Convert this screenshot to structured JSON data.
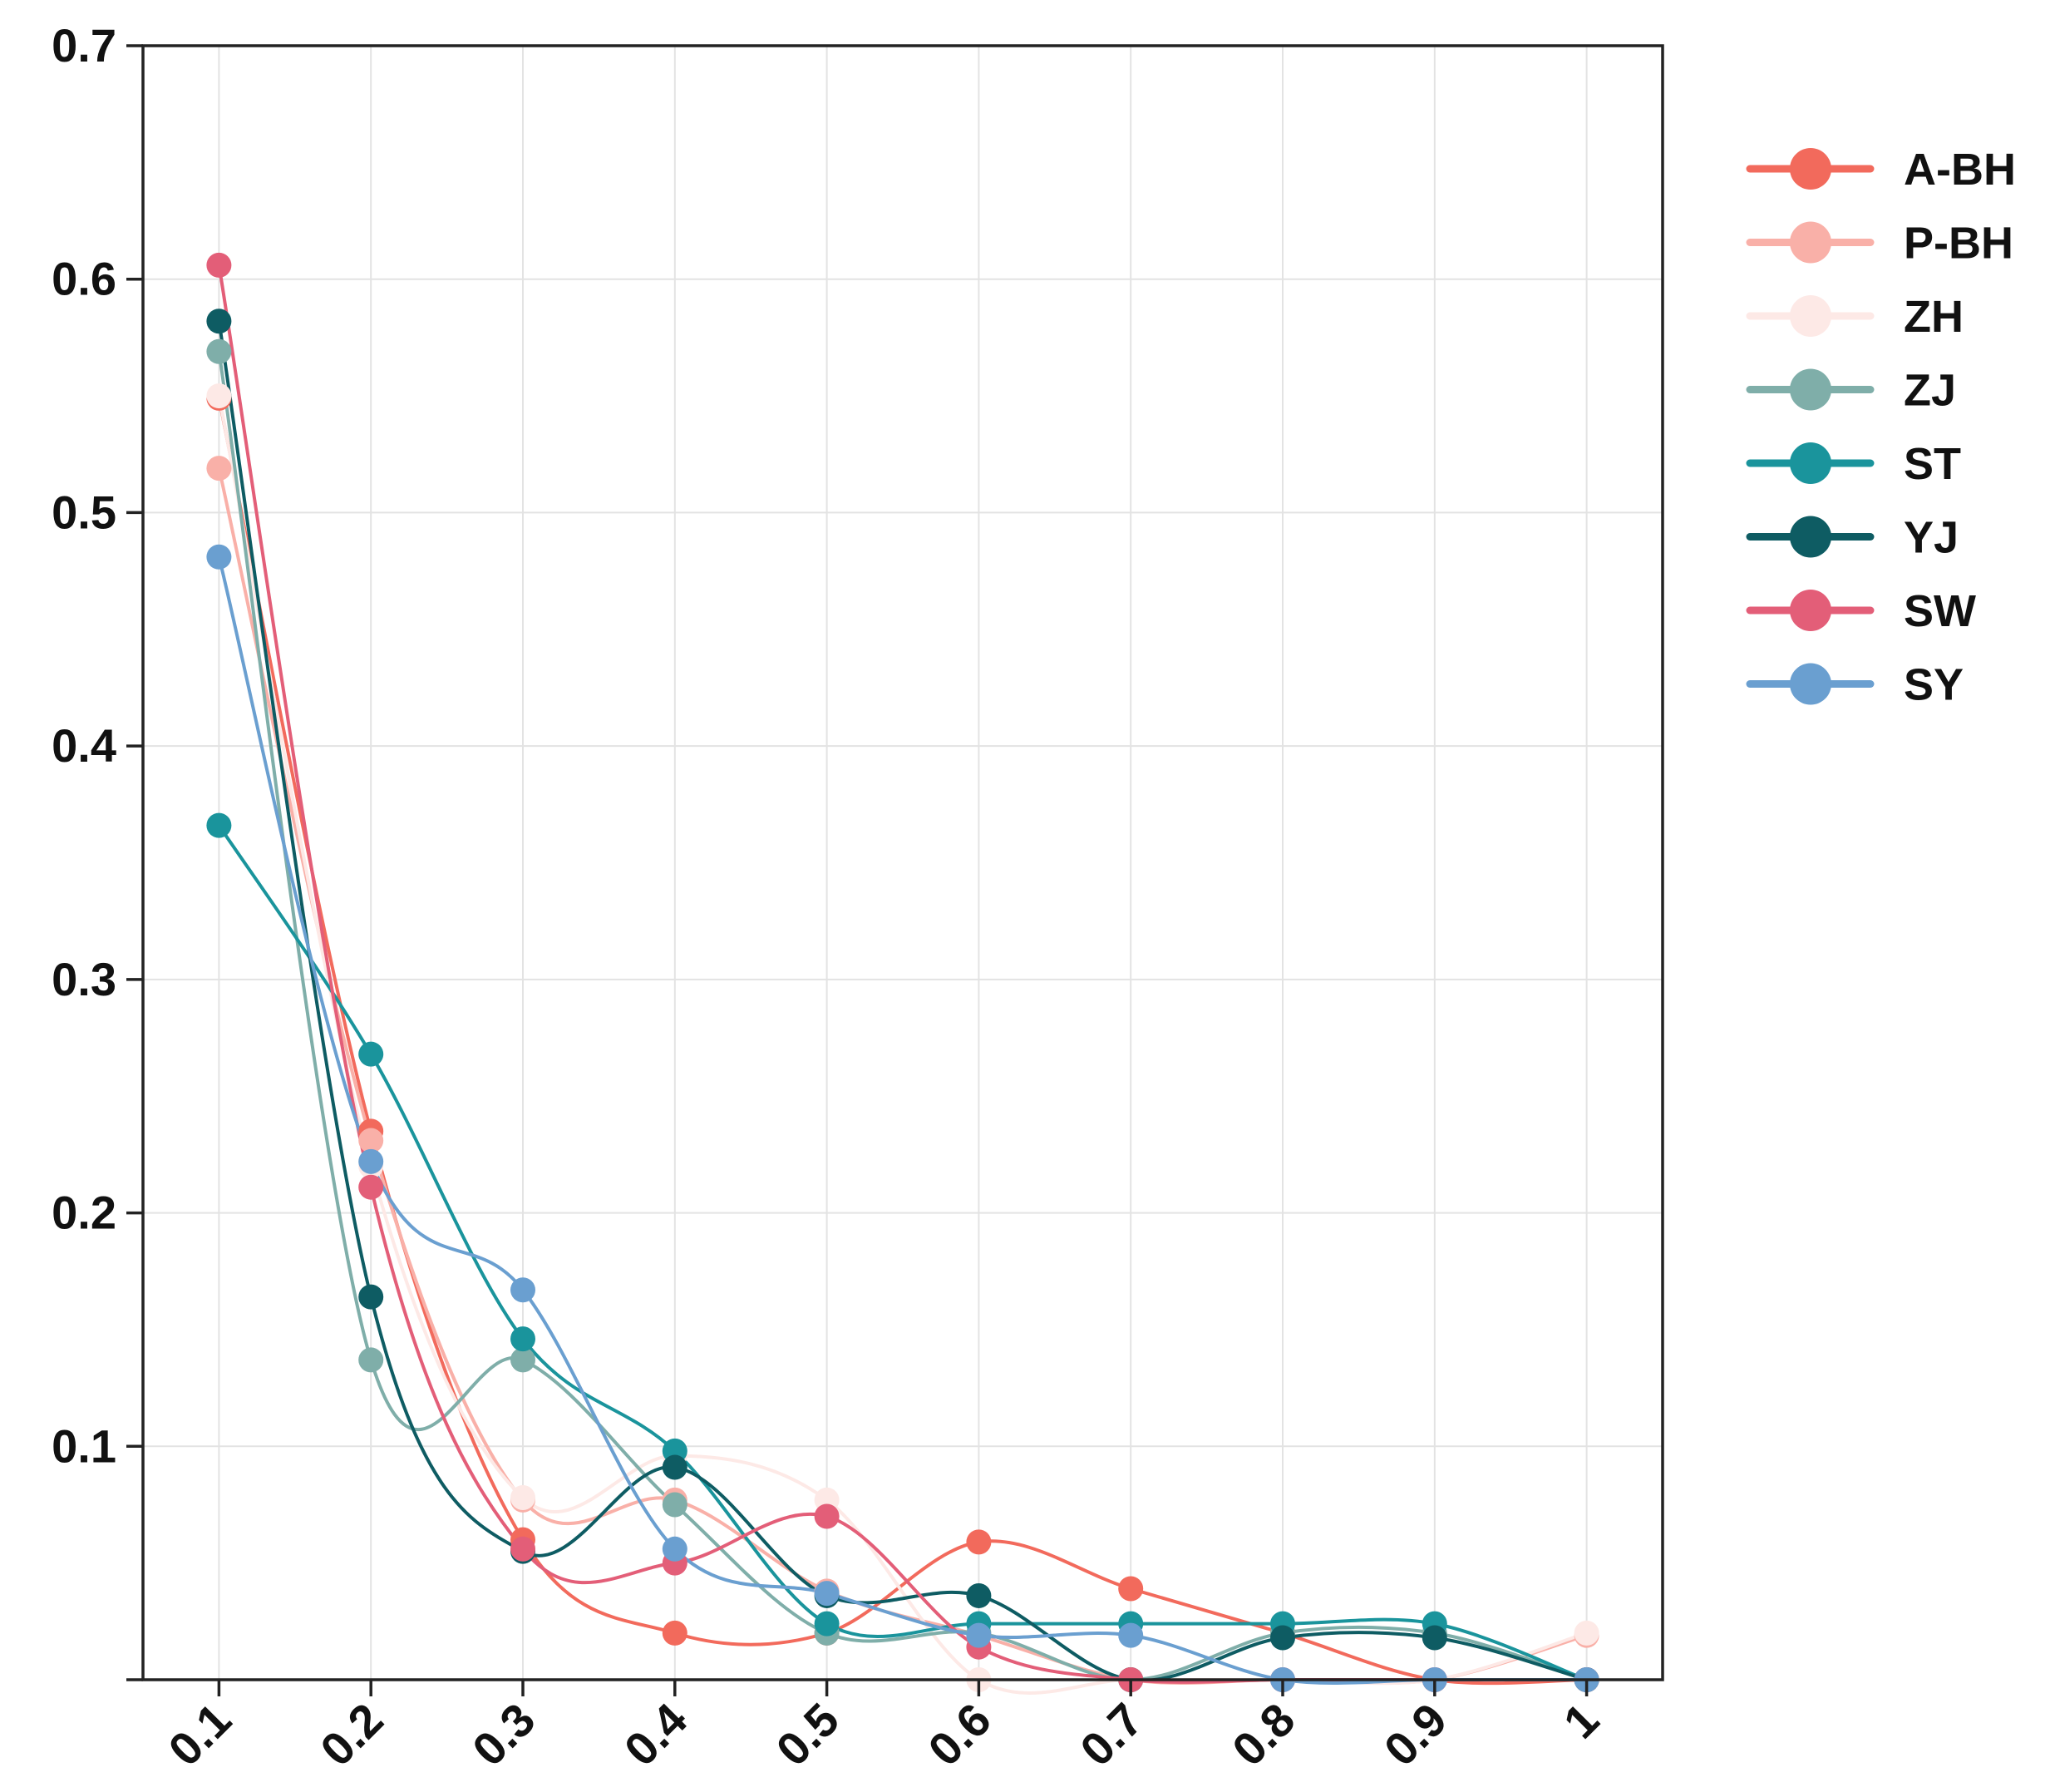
{
  "chart_data": {
    "type": "line",
    "title": "",
    "xlabel": "",
    "ylabel": "",
    "x": [
      0.1,
      0.2,
      0.3,
      0.4,
      0.5,
      0.6,
      0.7,
      0.8,
      0.9,
      1
    ],
    "x_tick_labels": [
      "0.1",
      "0.2",
      "0.3",
      "0.4",
      "0.5",
      "0.6",
      "0.7",
      "0.8",
      "0.9",
      "1"
    ],
    "y_ticks": [
      0.1,
      0.2,
      0.3,
      0.4,
      0.5,
      0.6,
      0.7
    ],
    "y_tick_labels": [
      "0.1",
      "0.2",
      "0.3",
      "0.4",
      "0.5",
      "0.6",
      "0.7"
    ],
    "xlim": [
      0.05,
      1.05
    ],
    "ylim": [
      0,
      0.7
    ],
    "grid": true,
    "smooth": true,
    "legend_position": "right",
    "series": [
      {
        "name": "A-BH",
        "color": "#f26a5c",
        "values": [
          0.549,
          0.235,
          0.06,
          0.02,
          0.02,
          0.059,
          0.039,
          0.02,
          0.0,
          0.0
        ]
      },
      {
        "name": "P-BH",
        "color": "#f9b0a8",
        "values": [
          0.519,
          0.231,
          0.077,
          0.077,
          0.038,
          0.019,
          0.0,
          0.0,
          0.0,
          0.019
        ]
      },
      {
        "name": "ZH",
        "color": "#fde9e6",
        "values": [
          0.55,
          0.22,
          0.078,
          0.096,
          0.077,
          0.0,
          0.0,
          0.0,
          0.0,
          0.02
        ]
      },
      {
        "name": "ZJ",
        "color": "#7faea9",
        "values": [
          0.569,
          0.137,
          0.137,
          0.075,
          0.02,
          0.02,
          0.0,
          0.02,
          0.02,
          0.0
        ]
      },
      {
        "name": "ST",
        "color": "#1a949c",
        "values": [
          0.366,
          0.268,
          0.146,
          0.098,
          0.024,
          0.024,
          0.024,
          0.024,
          0.024,
          0.0
        ]
      },
      {
        "name": "YJ",
        "color": "#0e5c63",
        "values": [
          0.582,
          0.164,
          0.055,
          0.091,
          0.036,
          0.036,
          0.0,
          0.018,
          0.018,
          0.0
        ]
      },
      {
        "name": "SW",
        "color": "#e35e78",
        "values": [
          0.606,
          0.211,
          0.056,
          0.05,
          0.07,
          0.014,
          0.0,
          0.0,
          0.0,
          0.0
        ]
      },
      {
        "name": "SY",
        "color": "#6a9fd0",
        "values": [
          0.481,
          0.222,
          0.167,
          0.056,
          0.037,
          0.019,
          0.019,
          0.0,
          0.0,
          0.0
        ]
      }
    ]
  }
}
